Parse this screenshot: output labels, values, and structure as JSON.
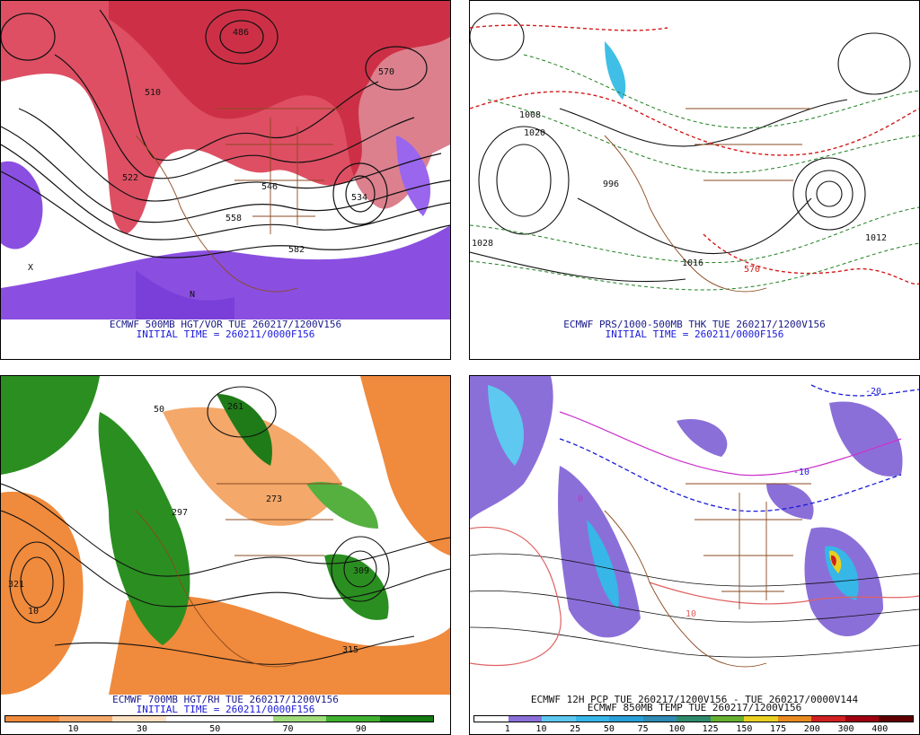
{
  "panels": [
    {
      "caption": "ECMWF 500MB HGT/VOR TUE 260217/1200V156",
      "initial": "INITIAL TIME = 260211/0000F156",
      "labels": [
        "486",
        "510",
        "522",
        "534",
        "546",
        "558",
        "570",
        "582",
        "X",
        "N"
      ]
    },
    {
      "caption": "ECMWF PRS/1000-500MB THK TUE 260217/1200V156",
      "initial": "INITIAL TIME = 260211/0000F156",
      "labels": [
        "1008",
        "1020",
        "1028",
        "996",
        "1012",
        "1016",
        "570"
      ]
    },
    {
      "caption": "ECMWF 700MB HGT/RH TUE 260217/1200V156",
      "initial": "INITIAL TIME = 260211/0000F156",
      "labels": [
        "261",
        "273",
        "297",
        "309",
        "315",
        "321",
        "10",
        "50"
      ],
      "colorbar": {
        "ticks": [
          "10",
          "30",
          "50",
          "70",
          "90"
        ],
        "colors": [
          "#f08a3c",
          "#f4a86a",
          "#fde0c0",
          "#ffffff",
          "#ffffff",
          "#9fdc7a",
          "#3fb02f",
          "#157a12"
        ]
      }
    },
    {
      "caption": "ECMWF 12H PCP TUE 260217/1200V156 - TUE 260217/0000V144",
      "caption2": "ECMWF 850MB TEMP TUE 260217/1200V156",
      "labels": [
        "-10",
        "0",
        "10",
        "-20"
      ],
      "colorbar": {
        "ticks": [
          "1",
          "10",
          "25",
          "50",
          "75",
          "100",
          "125",
          "150",
          "175",
          "200",
          "300",
          "400"
        ],
        "colors": [
          "#ffffff",
          "#8b6fd8",
          "#5ec8f0",
          "#37b6e8",
          "#29a0d8",
          "#2f8ab4",
          "#2f8a6c",
          "#66b030",
          "#e8d020",
          "#e88a20",
          "#d02020",
          "#a00010",
          "#600000"
        ]
      }
    }
  ]
}
